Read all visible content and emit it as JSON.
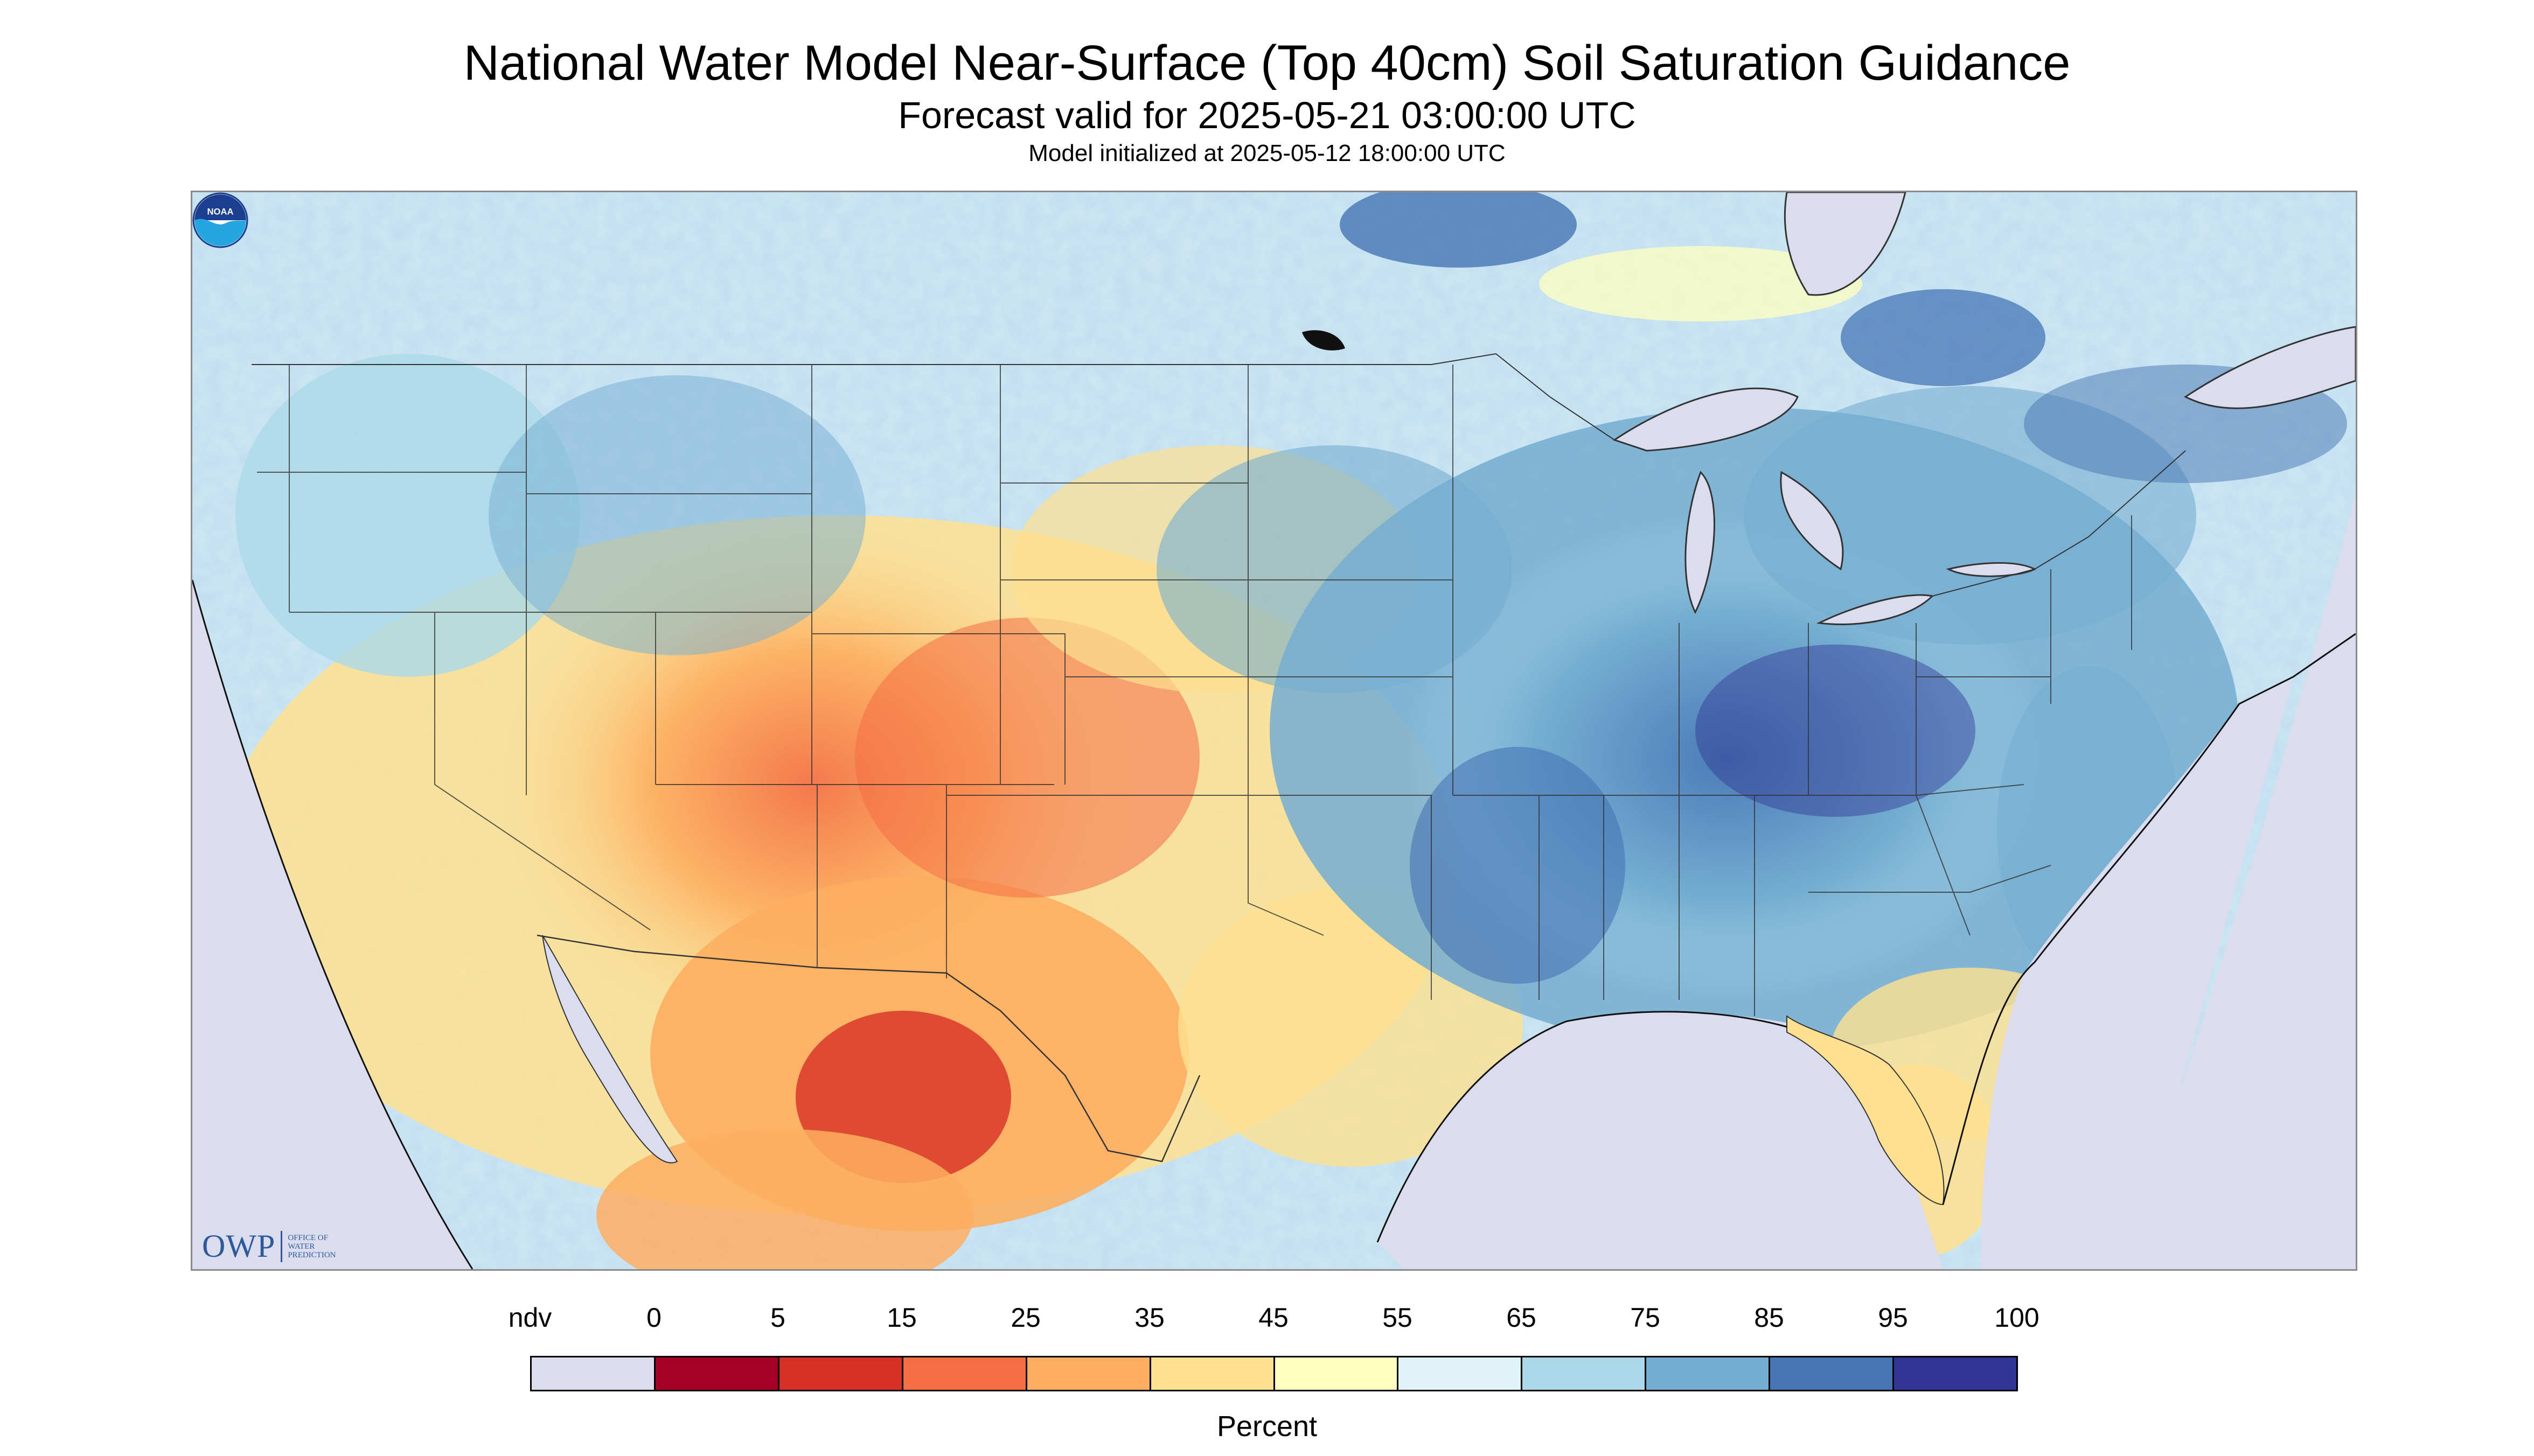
{
  "title": "National Water Model Near-Surface (Top 40cm) Soil Saturation Guidance",
  "subtitle": "Forecast valid for 2025-05-21 03:00:00 UTC",
  "model_init": "Model initialized at 2025-05-12 18:00:00 UTC",
  "logos": {
    "owp_text": "OWP",
    "owp_small_lines": [
      "OFFICE OF",
      "WATER",
      "PREDICTION"
    ],
    "noaa_text": "NOAA"
  },
  "legend": {
    "unit": "Percent",
    "labels": [
      "ndv",
      "0",
      "5",
      "15",
      "25",
      "35",
      "45",
      "55",
      "65",
      "75",
      "85",
      "95",
      "100"
    ],
    "colors": [
      "#dcdcef",
      "#a50026",
      "#d73027",
      "#f46d43",
      "#fdae61",
      "#fee090",
      "#ffffbf",
      "#e0f3f8",
      "#abd9e9",
      "#74add1",
      "#4575b4",
      "#313695"
    ]
  },
  "colors": {
    "nodata": "#dcdcef",
    "dry_extreme": "#a50026",
    "wet_extreme": "#313695"
  }
}
